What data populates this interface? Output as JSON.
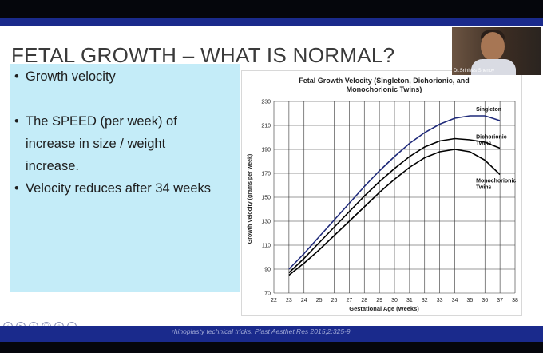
{
  "slide": {
    "title": "FETAL GROWTH – WHAT IS NORMAL?",
    "bullets": {
      "b1": "Growth velocity",
      "b2_line1": "The SPEED (per week) of",
      "b2_line2": "increase in size / weight",
      "b2_line3": "increase.",
      "b3": "Velocity reduces after 34 weeks"
    },
    "bullet_char": "•"
  },
  "webcam": {
    "name": "Dr.Srinivas Shenoy"
  },
  "footer": {
    "reference": "rhinoplasty technical tricks. Plast Aesthet Res 2015;2:325-9."
  },
  "player_controls": {
    "icons": [
      "prev-icon",
      "play-icon",
      "next-icon",
      "copy-icon",
      "search-icon",
      "more-icon"
    ],
    "glyphs": [
      "‹",
      "▸",
      "›",
      "▢",
      "⌕",
      "…"
    ]
  },
  "chart_data": {
    "type": "line",
    "title_line1": "Fetal Growth Velocity (Singleton, Dichorionic, and",
    "title_line2": "Monochorionic Twins)",
    "xlabel": "Gestational Age (Weeks)",
    "ylabel": "Growth Velocity (grams per week)",
    "xlim": [
      22,
      38
    ],
    "ylim": [
      70,
      230
    ],
    "xticks": [
      22,
      23,
      24,
      25,
      26,
      27,
      28,
      29,
      30,
      31,
      32,
      33,
      34,
      35,
      36,
      37,
      38
    ],
    "yticks": [
      70,
      90,
      110,
      130,
      150,
      170,
      190,
      210,
      230
    ],
    "grid": true,
    "series": [
      {
        "name": "Singleton",
        "label_line1": "Singleton",
        "label_line2": "",
        "color": "#1f2a7a",
        "x": [
          23,
          24,
          25,
          26,
          27,
          28,
          29,
          30,
          31,
          32,
          33,
          34,
          35,
          36,
          37
        ],
        "values": [
          90,
          103,
          117,
          131,
          145,
          159,
          172,
          184,
          195,
          204,
          211,
          216,
          218,
          218,
          214
        ]
      },
      {
        "name": "Dichorionic Twins",
        "label_line1": "Dichorionic",
        "label_line2": "Twins",
        "color": "#000000",
        "x": [
          23,
          24,
          25,
          26,
          27,
          28,
          29,
          30,
          31,
          32,
          33,
          34,
          35,
          36,
          37
        ],
        "values": [
          87,
          99,
          112,
          125,
          138,
          151,
          163,
          174,
          184,
          192,
          197,
          199,
          198,
          196,
          191
        ]
      },
      {
        "name": "Monochorionic Twins",
        "label_line1": "Monochorionic",
        "label_line2": "Twins",
        "color": "#000000",
        "x": [
          23,
          24,
          25,
          26,
          27,
          28,
          29,
          30,
          31,
          32,
          33,
          34,
          35,
          36,
          37
        ],
        "values": [
          85,
          95,
          106,
          118,
          130,
          142,
          154,
          165,
          175,
          183,
          188,
          190,
          188,
          181,
          169
        ]
      }
    ]
  }
}
